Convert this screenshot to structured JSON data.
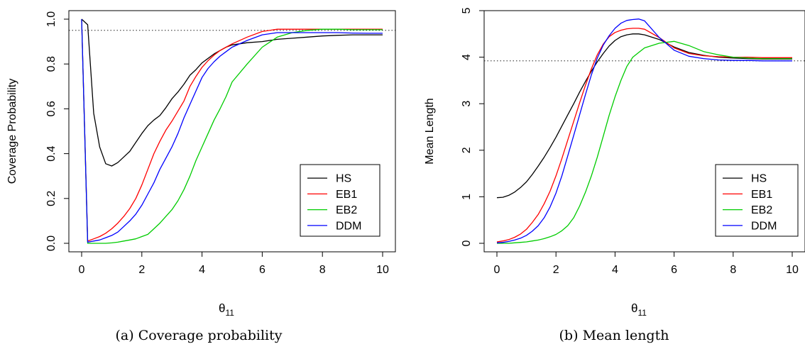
{
  "figure": {
    "captions": [
      {
        "tag": "(a)",
        "text": "Coverage probability"
      },
      {
        "tag": "(b)",
        "text": "Mean length"
      }
    ]
  },
  "chart_data": [
    {
      "type": "line",
      "ylabel": "Coverage Probability",
      "xlabel_base": "θ",
      "xlabel_sub": "11",
      "xlim": [
        0,
        10
      ],
      "ylim": [
        0,
        1.0
      ],
      "x_ticks": [
        0,
        2,
        4,
        6,
        8,
        10
      ],
      "x_tick_labels": [
        "0",
        "2",
        "4",
        "6",
        "8",
        "10"
      ],
      "y_ticks": [
        0,
        0.2,
        0.4,
        0.6,
        0.8,
        1.0
      ],
      "y_tick_labels": [
        "0.0",
        "0.2",
        "0.4",
        "0.6",
        "0.8",
        "1.0"
      ],
      "reference_line": 0.95,
      "legend_position": "bottom-right",
      "series": [
        {
          "name": "HS",
          "color": "#000000",
          "x": [
            0,
            0.2,
            0.4,
            0.6,
            0.8,
            1.0,
            1.2,
            1.4,
            1.6,
            1.8,
            2.0,
            2.2,
            2.4,
            2.6,
            2.8,
            3.0,
            3.2,
            3.4,
            3.6,
            3.8,
            4.0,
            4.2,
            4.4,
            4.6,
            4.8,
            5.0,
            5.5,
            6.0,
            6.5,
            7.0,
            7.5,
            8.0,
            8.5,
            9.0,
            9.5,
            10.0
          ],
          "y": [
            1.0,
            0.975,
            0.58,
            0.43,
            0.355,
            0.345,
            0.36,
            0.385,
            0.41,
            0.45,
            0.49,
            0.525,
            0.55,
            0.57,
            0.605,
            0.645,
            0.675,
            0.71,
            0.75,
            0.775,
            0.805,
            0.825,
            0.845,
            0.86,
            0.875,
            0.885,
            0.895,
            0.9,
            0.91,
            0.915,
            0.92,
            0.925,
            0.928,
            0.93,
            0.93,
            0.93
          ]
        },
        {
          "name": "EB1",
          "color": "#ff0000",
          "x": [
            0,
            0.2,
            0.4,
            0.6,
            0.8,
            1.0,
            1.2,
            1.4,
            1.6,
            1.8,
            2.0,
            2.2,
            2.4,
            2.6,
            2.8,
            3.0,
            3.2,
            3.4,
            3.6,
            3.8,
            4.0,
            4.2,
            4.4,
            4.6,
            4.8,
            5.0,
            5.5,
            6.0,
            6.5,
            7.0,
            7.5,
            8.0,
            8.5,
            9.0,
            9.5,
            10.0
          ],
          "y": [
            1.0,
            0.01,
            0.02,
            0.03,
            0.045,
            0.065,
            0.09,
            0.12,
            0.155,
            0.2,
            0.26,
            0.33,
            0.4,
            0.455,
            0.505,
            0.545,
            0.59,
            0.635,
            0.7,
            0.745,
            0.785,
            0.815,
            0.84,
            0.86,
            0.875,
            0.89,
            0.92,
            0.945,
            0.955,
            0.955,
            0.955,
            0.955,
            0.955,
            0.955,
            0.955,
            0.955
          ]
        },
        {
          "name": "EB2",
          "color": "#00cc00",
          "x": [
            0,
            0.2,
            0.4,
            0.6,
            0.8,
            1.0,
            1.2,
            1.4,
            1.6,
            1.8,
            2.0,
            2.2,
            2.4,
            2.6,
            2.8,
            3.0,
            3.2,
            3.4,
            3.6,
            3.8,
            4.0,
            4.2,
            4.4,
            4.6,
            4.8,
            5.0,
            5.5,
            6.0,
            6.5,
            7.0,
            7.5,
            8.0,
            8.5,
            9.0,
            9.5,
            10.0
          ],
          "y": [
            1.0,
            0.0,
            0.0,
            0.0,
            0.0,
            0.002,
            0.005,
            0.01,
            0.015,
            0.02,
            0.03,
            0.04,
            0.065,
            0.09,
            0.12,
            0.15,
            0.19,
            0.24,
            0.3,
            0.37,
            0.43,
            0.49,
            0.55,
            0.6,
            0.655,
            0.72,
            0.8,
            0.875,
            0.92,
            0.94,
            0.95,
            0.955,
            0.955,
            0.953,
            0.953,
            0.953
          ]
        },
        {
          "name": "DDM",
          "color": "#0000ff",
          "x": [
            0,
            0.2,
            0.4,
            0.6,
            0.8,
            1.0,
            1.2,
            1.4,
            1.6,
            1.8,
            2.0,
            2.2,
            2.4,
            2.6,
            2.8,
            3.0,
            3.2,
            3.4,
            3.6,
            3.8,
            4.0,
            4.2,
            4.4,
            4.6,
            4.8,
            5.0,
            5.5,
            6.0,
            6.5,
            7.0,
            7.5,
            8.0,
            8.5,
            9.0,
            9.5,
            10.0
          ],
          "y": [
            1.0,
            0.005,
            0.01,
            0.015,
            0.025,
            0.035,
            0.05,
            0.075,
            0.1,
            0.13,
            0.17,
            0.22,
            0.27,
            0.33,
            0.38,
            0.43,
            0.49,
            0.56,
            0.62,
            0.68,
            0.74,
            0.78,
            0.81,
            0.835,
            0.855,
            0.875,
            0.905,
            0.93,
            0.94,
            0.94,
            0.94,
            0.94,
            0.94,
            0.938,
            0.937,
            0.937
          ]
        }
      ]
    },
    {
      "type": "line",
      "ylabel": "Mean Length",
      "xlabel_base": "θ",
      "xlabel_sub": "11",
      "xlim": [
        0,
        10
      ],
      "ylim": [
        0,
        5
      ],
      "x_ticks": [
        0,
        2,
        4,
        6,
        8,
        10
      ],
      "x_tick_labels": [
        "0",
        "2",
        "4",
        "6",
        "8",
        "10"
      ],
      "y_ticks": [
        0,
        1,
        2,
        3,
        4,
        5
      ],
      "y_tick_labels": [
        "0",
        "1",
        "2",
        "3",
        "4",
        "5"
      ],
      "reference_line": 3.92,
      "legend_position": "bottom-right",
      "series": [
        {
          "name": "HS",
          "color": "#000000",
          "x": [
            0,
            0.2,
            0.4,
            0.6,
            0.8,
            1.0,
            1.2,
            1.4,
            1.6,
            1.8,
            2.0,
            2.2,
            2.4,
            2.6,
            2.8,
            3.0,
            3.2,
            3.4,
            3.6,
            3.8,
            4.0,
            4.2,
            4.4,
            4.6,
            4.8,
            5.0,
            5.5,
            6.0,
            6.5,
            7.0,
            7.5,
            8.0,
            8.5,
            9.0,
            9.5,
            10.0
          ],
          "y": [
            0.98,
            0.99,
            1.03,
            1.1,
            1.2,
            1.32,
            1.48,
            1.66,
            1.85,
            2.06,
            2.28,
            2.52,
            2.76,
            3.0,
            3.25,
            3.48,
            3.7,
            3.9,
            4.08,
            4.24,
            4.36,
            4.44,
            4.48,
            4.5,
            4.5,
            4.48,
            4.38,
            4.22,
            4.1,
            4.04,
            4.0,
            3.98,
            3.97,
            3.96,
            3.96,
            3.96
          ]
        },
        {
          "name": "EB1",
          "color": "#ff0000",
          "x": [
            0,
            0.2,
            0.4,
            0.6,
            0.8,
            1.0,
            1.2,
            1.4,
            1.6,
            1.8,
            2.0,
            2.2,
            2.4,
            2.6,
            2.8,
            3.0,
            3.2,
            3.4,
            3.6,
            3.8,
            4.0,
            4.2,
            4.4,
            4.6,
            4.8,
            5.0,
            5.5,
            6.0,
            6.5,
            7.0,
            7.5,
            8.0,
            8.5,
            9.0,
            9.5,
            10.0
          ],
          "y": [
            0.03,
            0.05,
            0.08,
            0.13,
            0.2,
            0.3,
            0.45,
            0.62,
            0.85,
            1.12,
            1.45,
            1.82,
            2.22,
            2.62,
            3.02,
            3.4,
            3.75,
            4.05,
            4.28,
            4.44,
            4.53,
            4.58,
            4.61,
            4.62,
            4.62,
            4.6,
            4.42,
            4.2,
            4.08,
            4.03,
            4.01,
            4.0,
            4.0,
            3.99,
            3.99,
            3.99
          ]
        },
        {
          "name": "EB2",
          "color": "#00cc00",
          "x": [
            0,
            0.2,
            0.4,
            0.6,
            0.8,
            1.0,
            1.2,
            1.4,
            1.6,
            1.8,
            2.0,
            2.2,
            2.4,
            2.6,
            2.8,
            3.0,
            3.2,
            3.4,
            3.6,
            3.8,
            4.0,
            4.2,
            4.4,
            4.6,
            4.8,
            5.0,
            5.5,
            6.0,
            6.5,
            7.0,
            7.5,
            8.0,
            8.5,
            9.0,
            9.5,
            10.0
          ],
          "y": [
            0.0,
            0.0,
            0.0,
            0.01,
            0.02,
            0.03,
            0.05,
            0.07,
            0.1,
            0.14,
            0.19,
            0.27,
            0.38,
            0.55,
            0.8,
            1.1,
            1.45,
            1.85,
            2.3,
            2.75,
            3.15,
            3.5,
            3.8,
            4.0,
            4.1,
            4.2,
            4.3,
            4.34,
            4.25,
            4.12,
            4.05,
            4.0,
            3.98,
            3.97,
            3.97,
            3.97
          ]
        },
        {
          "name": "DDM",
          "color": "#0000ff",
          "x": [
            0,
            0.2,
            0.4,
            0.6,
            0.8,
            1.0,
            1.2,
            1.4,
            1.6,
            1.8,
            2.0,
            2.2,
            2.4,
            2.6,
            2.8,
            3.0,
            3.2,
            3.4,
            3.6,
            3.8,
            4.0,
            4.2,
            4.4,
            4.6,
            4.8,
            5.0,
            5.5,
            6.0,
            6.5,
            7.0,
            7.5,
            8.0,
            8.5,
            9.0,
            9.5,
            10.0
          ],
          "y": [
            0.01,
            0.02,
            0.04,
            0.07,
            0.11,
            0.17,
            0.26,
            0.38,
            0.55,
            0.78,
            1.08,
            1.45,
            1.88,
            2.32,
            2.76,
            3.2,
            3.62,
            3.98,
            4.26,
            4.46,
            4.62,
            4.73,
            4.79,
            4.81,
            4.82,
            4.78,
            4.42,
            4.15,
            4.02,
            3.97,
            3.94,
            3.93,
            3.93,
            3.92,
            3.92,
            3.92
          ]
        }
      ]
    }
  ]
}
